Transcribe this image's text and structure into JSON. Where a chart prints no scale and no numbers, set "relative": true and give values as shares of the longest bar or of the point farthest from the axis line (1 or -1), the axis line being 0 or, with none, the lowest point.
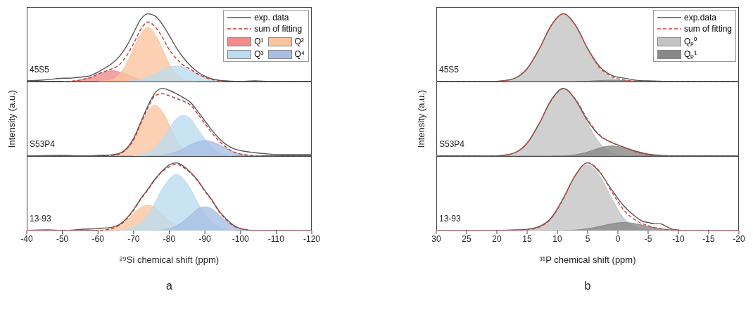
{
  "chart_data": [
    {
      "type": "area",
      "relative": true,
      "xlim": [
        -40,
        -120
      ],
      "tick_labels": false,
      "legend": "top right",
      "annotations": [
        "45S5"
      ],
      "series": [
        {
          "name": "exp. data",
          "type": "line",
          "line_style": "solid",
          "color": "#555555",
          "x": [
            -40,
            -44,
            -48,
            -50,
            -52,
            -54,
            -56,
            -58,
            -60,
            -62,
            -64,
            -66,
            -68,
            -70,
            -72,
            -74,
            -76,
            -78,
            -80,
            -82,
            -84,
            -86,
            -88,
            -90,
            -92,
            -94,
            -96,
            -100,
            -104,
            -108,
            -112,
            -116,
            -120
          ],
          "values": [
            0.01,
            0.02,
            0.04,
            0.05,
            0.05,
            0.06,
            0.07,
            0.09,
            0.14,
            0.2,
            0.27,
            0.37,
            0.52,
            0.72,
            0.92,
            1,
            0.97,
            0.85,
            0.68,
            0.5,
            0.35,
            0.23,
            0.14,
            0.08,
            0.04,
            0.02,
            0.01,
            0,
            0.01,
            0,
            0,
            0,
            0
          ]
        },
        {
          "name": "sum of fitting",
          "type": "line",
          "line_style": "dashed",
          "color": "#c0392b",
          "x": [
            -40,
            -50,
            -52,
            -54,
            -56,
            -58,
            -60,
            -62,
            -64,
            -66,
            -68,
            -70,
            -72,
            -74,
            -76,
            -78,
            -80,
            -82,
            -84,
            -86,
            -88,
            -90,
            -92,
            -94,
            -96,
            -98,
            -100,
            -120
          ],
          "values": [
            0,
            0,
            0.004,
            0.013,
            0.035,
            0.06,
            0.11,
            0.15,
            0.19,
            0.25,
            0.38,
            0.56,
            0.77,
            0.88,
            0.81,
            0.66,
            0.47,
            0.34,
            0.24,
            0.18,
            0.11,
            0.064,
            0.03,
            0.014,
            0.005,
            0,
            0,
            0
          ]
        },
        {
          "name": "Q¹",
          "type": "area",
          "color": "#f08c8c",
          "x": [
            -50,
            -52,
            -54,
            -56,
            -58,
            -60,
            -62,
            -64,
            -66,
            -68,
            -70,
            -72,
            -74,
            -76,
            -78
          ],
          "values": [
            0,
            0.004,
            0.013,
            0.035,
            0.06,
            0.11,
            0.14,
            0.16,
            0.14,
            0.11,
            0.06,
            0.035,
            0.013,
            0.004,
            0
          ]
        },
        {
          "name": "Q²",
          "type": "area",
          "color": "#fbc4a0",
          "x": [
            -60,
            -62,
            -64,
            -66,
            -68,
            -70,
            -72,
            -74,
            -76,
            -78,
            -80,
            -82,
            -84,
            -86,
            -88
          ],
          "values": [
            0,
            0.01,
            0.03,
            0.11,
            0.26,
            0.49,
            0.7,
            0.8,
            0.7,
            0.49,
            0.26,
            0.11,
            0.03,
            0.01,
            0
          ]
        },
        {
          "name": "Q³",
          "type": "area",
          "color": "#bcdcef",
          "x": [
            -66,
            -68,
            -70,
            -72,
            -74,
            -76,
            -78,
            -80,
            -82,
            -84,
            -86,
            -88,
            -90,
            -92,
            -94,
            -96,
            -98
          ],
          "values": [
            0,
            0.005,
            0.014,
            0.03,
            0.064,
            0.11,
            0.17,
            0.21,
            0.23,
            0.21,
            0.17,
            0.11,
            0.064,
            0.03,
            0.014,
            0.005,
            0
          ]
        }
      ]
    },
    {
      "type": "area",
      "relative": true,
      "xlim": [
        -40,
        -120
      ],
      "tick_labels": false,
      "ylabel": "Intensity (a.u.)",
      "annotations": [
        "S53P4"
      ],
      "series": [
        {
          "type": "line",
          "line_style": "solid",
          "color": "#555555",
          "x": [
            -40,
            -50,
            -56,
            -60,
            -64,
            -66,
            -68,
            -70,
            -72,
            -74,
            -76,
            -78,
            -80,
            -82,
            -84,
            -86,
            -88,
            -90,
            -92,
            -94,
            -96,
            -98,
            -100,
            -104,
            -108,
            -112,
            -116,
            -120
          ],
          "values": [
            0,
            0.01,
            0,
            0.01,
            0.02,
            0.04,
            0.11,
            0.26,
            0.5,
            0.74,
            0.93,
            1,
            0.97,
            0.92,
            0.86,
            0.79,
            0.66,
            0.52,
            0.38,
            0.26,
            0.17,
            0.11,
            0.08,
            0.05,
            0.03,
            0.02,
            0.02,
            0.02
          ]
        },
        {
          "type": "line",
          "line_style": "dashed",
          "color": "#c0392b",
          "x": [
            -40,
            -60,
            -62,
            -64,
            -66,
            -68,
            -70,
            -72,
            -74,
            -76,
            -78,
            -80,
            -82,
            -84,
            -86,
            -88,
            -90,
            -92,
            -94,
            -96,
            -98,
            -100,
            -102,
            -104,
            -106,
            -120
          ],
          "values": [
            0,
            0,
            0,
            0.01,
            0.03,
            0.1,
            0.24,
            0.48,
            0.71,
            0.89,
            0.92,
            0.89,
            0.85,
            0.81,
            0.75,
            0.62,
            0.48,
            0.34,
            0.22,
            0.13,
            0.064,
            0.03,
            0.014,
            0.005,
            0,
            0
          ]
        },
        {
          "type": "area",
          "color": "#fbc4a0",
          "x": [
            -62,
            -64,
            -66,
            -68,
            -70,
            -72,
            -74,
            -76,
            -78,
            -80,
            -82,
            -84,
            -86,
            -88,
            -90
          ],
          "values": [
            0,
            0.01,
            0.03,
            0.1,
            0.24,
            0.46,
            0.66,
            0.75,
            0.66,
            0.46,
            0.24,
            0.1,
            0.03,
            0.01,
            0
          ]
        },
        {
          "type": "area",
          "color": "#bcdcef",
          "x": [
            -70,
            -72,
            -74,
            -76,
            -78,
            -80,
            -82,
            -84,
            -86,
            -88,
            -90,
            -92,
            -94,
            -96,
            -98
          ],
          "values": [
            0,
            0.02,
            0.05,
            0.13,
            0.25,
            0.4,
            0.55,
            0.6,
            0.55,
            0.4,
            0.25,
            0.13,
            0.05,
            0.02,
            0
          ]
        },
        {
          "name": "Q⁴",
          "type": "area",
          "color": "#a8bfe3",
          "x": [
            -74,
            -76,
            -78,
            -80,
            -82,
            -84,
            -86,
            -88,
            -90,
            -92,
            -94,
            -96,
            -98,
            -100,
            -102,
            -104,
            -106
          ],
          "values": [
            0,
            0.005,
            0.014,
            0.03,
            0.064,
            0.11,
            0.17,
            0.21,
            0.23,
            0.21,
            0.17,
            0.11,
            0.064,
            0.03,
            0.014,
            0.005,
            0
          ]
        }
      ]
    },
    {
      "type": "area",
      "relative": true,
      "xlim": [
        -40,
        -120
      ],
      "xticks": [
        -40,
        -50,
        -60,
        -70,
        -80,
        -90,
        -100,
        -110,
        -120
      ],
      "xlabel": "²⁹Si chemical shift (ppm)",
      "annotations": [
        "13-93",
        "a"
      ],
      "series": [
        {
          "type": "line",
          "line_style": "solid",
          "color": "#555555",
          "x": [
            -40,
            -46,
            -50,
            -56,
            -60,
            -64,
            -66,
            -68,
            -70,
            -72,
            -74,
            -76,
            -78,
            -80,
            -82,
            -84,
            -86,
            -88,
            -90,
            -92,
            -94,
            -96,
            -98,
            -100,
            -104,
            -108,
            -112,
            -116,
            -120
          ],
          "values": [
            0,
            0.01,
            0,
            0.02,
            0.03,
            0.05,
            0.09,
            0.18,
            0.31,
            0.47,
            0.61,
            0.76,
            0.88,
            0.97,
            1,
            0.95,
            0.86,
            0.74,
            0.59,
            0.45,
            0.29,
            0.17,
            0.08,
            0.03,
            0,
            0,
            0,
            0,
            0
          ]
        },
        {
          "type": "line",
          "line_style": "dashed",
          "color": "#c0392b",
          "x": [
            -40,
            -60,
            -62,
            -64,
            -66,
            -68,
            -70,
            -72,
            -74,
            -76,
            -78,
            -80,
            -82,
            -84,
            -86,
            -88,
            -90,
            -92,
            -94,
            -96,
            -98,
            -100,
            -102,
            -104,
            -120
          ],
          "values": [
            0,
            0,
            0.01,
            0.03,
            0.08,
            0.17,
            0.3,
            0.46,
            0.6,
            0.75,
            0.87,
            0.94,
            0.98,
            0.93,
            0.85,
            0.73,
            0.58,
            0.44,
            0.28,
            0.16,
            0.07,
            0.03,
            0.01,
            0,
            0
          ]
        },
        {
          "type": "area",
          "color": "#fbc4a0",
          "x": [
            -60,
            -62,
            -64,
            -66,
            -68,
            -70,
            -72,
            -74,
            -76,
            -78,
            -80,
            -82,
            -84,
            -86,
            -88
          ],
          "values": [
            0,
            0.01,
            0.03,
            0.08,
            0.15,
            0.25,
            0.34,
            0.37,
            0.34,
            0.25,
            0.15,
            0.08,
            0.03,
            0.01,
            0
          ]
        },
        {
          "type": "area",
          "color": "#bcdcef",
          "x": [
            -66,
            -68,
            -70,
            -72,
            -74,
            -76,
            -78,
            -80,
            -82,
            -84,
            -86,
            -88,
            -90,
            -92,
            -94,
            -96,
            -98
          ],
          "values": [
            0,
            0.02,
            0.05,
            0.12,
            0.23,
            0.41,
            0.61,
            0.76,
            0.83,
            0.76,
            0.61,
            0.41,
            0.23,
            0.12,
            0.05,
            0.02,
            0
          ]
        },
        {
          "type": "area",
          "color": "#a8bfe3",
          "x": [
            -76,
            -78,
            -80,
            -82,
            -84,
            -86,
            -88,
            -90,
            -92,
            -94,
            -96,
            -98,
            -100,
            -102,
            -104
          ],
          "values": [
            0,
            0.01,
            0.03,
            0.07,
            0.14,
            0.23,
            0.32,
            0.35,
            0.32,
            0.23,
            0.14,
            0.07,
            0.03,
            0.01,
            0
          ]
        }
      ]
    },
    {
      "type": "area",
      "relative": true,
      "xlim": [
        30,
        -20
      ],
      "tick_labels": false,
      "legend": "top right",
      "annotations": [
        "45S5"
      ],
      "series": [
        {
          "name": "exp.data",
          "type": "line",
          "line_style": "solid",
          "color": "#555555",
          "x": [
            30,
            21,
            19,
            17,
            15,
            13,
            11,
            9,
            7,
            5,
            3,
            1,
            -1,
            -3,
            -5,
            -10,
            -15,
            -20
          ],
          "values": [
            0,
            0,
            0.01,
            0.05,
            0.19,
            0.48,
            0.83,
            1,
            0.83,
            0.49,
            0.22,
            0.09,
            0.05,
            0.02,
            0.01,
            0,
            0,
            0
          ]
        },
        {
          "name": "sum of fitting",
          "type": "line",
          "line_style": "dashed",
          "color": "#d9443a",
          "x": [
            30,
            23,
            21,
            19,
            17,
            15,
            13,
            11,
            9,
            7,
            5,
            3,
            1,
            -1,
            -3,
            -5,
            -7,
            -20
          ],
          "values": [
            0,
            0,
            0,
            0.01,
            0.05,
            0.19,
            0.48,
            0.83,
            1,
            0.83,
            0.485,
            0.205,
            0.07,
            0.025,
            0.005,
            0,
            0,
            0
          ]
        },
        {
          "name": "Qₚ⁰",
          "type": "area",
          "color": "#c4c4c4",
          "x": [
            23,
            21,
            19,
            17,
            15,
            13,
            11,
            9,
            7,
            5,
            3,
            1,
            -1,
            -3,
            -5
          ],
          "values": [
            0,
            0,
            0.01,
            0.05,
            0.19,
            0.48,
            0.83,
            1,
            0.83,
            0.48,
            0.19,
            0.05,
            0.01,
            0,
            0
          ]
        },
        {
          "name": "Qₚ¹",
          "type": "area",
          "color": "#888888",
          "x": [
            7,
            5,
            3,
            1,
            -1,
            -3,
            -5
          ],
          "values": [
            0,
            0.005,
            0.015,
            0.02,
            0.015,
            0.005,
            0
          ]
        }
      ]
    },
    {
      "type": "area",
      "relative": true,
      "xlim": [
        30,
        -20
      ],
      "tick_labels": false,
      "ylabel": "Intensity (a.u.)",
      "annotations": [
        "S53P4"
      ],
      "series": [
        {
          "type": "line",
          "line_style": "solid",
          "color": "#555555",
          "x": [
            30,
            21,
            19,
            17,
            15,
            13,
            11,
            9,
            7,
            5,
            3,
            1,
            -1,
            -3,
            -5,
            -7,
            -10,
            -15,
            -20
          ],
          "values": [
            0,
            0,
            0.01,
            0.05,
            0.19,
            0.48,
            0.83,
            1,
            0.83,
            0.52,
            0.3,
            0.2,
            0.13,
            0.07,
            0.03,
            0.01,
            0,
            0,
            0
          ]
        },
        {
          "type": "line",
          "line_style": "dashed",
          "color": "#d9443a",
          "x": [
            30,
            23,
            21,
            19,
            17,
            15,
            13,
            11,
            9,
            7,
            5,
            3,
            1,
            -1,
            -3,
            -5,
            -7,
            -9,
            -20
          ],
          "values": [
            0,
            0,
            0,
            0.01,
            0.05,
            0.19,
            0.48,
            0.82,
            0.994,
            0.84,
            0.54,
            0.31,
            0.2,
            0.13,
            0.06,
            0.02,
            0.004,
            0,
            0
          ]
        },
        {
          "type": "area",
          "color": "#c4c4c4",
          "x": [
            23,
            21,
            19,
            17,
            15,
            13,
            11,
            9,
            7,
            5,
            3,
            1,
            -1,
            -3,
            -5
          ],
          "values": [
            0,
            0,
            0.01,
            0.05,
            0.19,
            0.48,
            0.82,
            0.99,
            0.82,
            0.48,
            0.19,
            0.05,
            0.01,
            0,
            0
          ]
        },
        {
          "type": "area",
          "color": "#888888",
          "x": [
            11,
            9,
            7,
            5,
            3,
            1,
            -1,
            -3,
            -5,
            -7,
            -9
          ],
          "values": [
            0,
            0.004,
            0.02,
            0.06,
            0.12,
            0.15,
            0.12,
            0.06,
            0.02,
            0.004,
            0
          ]
        }
      ]
    },
    {
      "type": "area",
      "relative": true,
      "xlim": [
        30,
        -20
      ],
      "xticks": [
        30,
        25,
        20,
        15,
        10,
        5,
        0,
        -5,
        -10,
        -15,
        -20
      ],
      "xlabel": "³¹P chemical shift (ppm)",
      "annotations": [
        "13-93",
        "b"
      ],
      "series": [
        {
          "type": "line",
          "line_style": "solid",
          "color": "#555555",
          "x": [
            30,
            20,
            17,
            15,
            13,
            11,
            9,
            7,
            5,
            3,
            1,
            -1,
            -3,
            -4,
            -5,
            -6,
            -7,
            -8,
            -9,
            -12,
            -20
          ],
          "values": [
            0,
            0,
            0.01,
            0.02,
            0.06,
            0.19,
            0.48,
            0.82,
            1,
            0.86,
            0.6,
            0.36,
            0.2,
            0.14,
            0.12,
            0.1,
            0.1,
            0.06,
            0.02,
            0,
            0
          ]
        },
        {
          "type": "line",
          "line_style": "dashed",
          "color": "#d9443a",
          "x": [
            30,
            19,
            17,
            15,
            13,
            11,
            9,
            7,
            5,
            3,
            1,
            -1,
            -3,
            -5,
            -7,
            -9,
            -11,
            -20
          ],
          "values": [
            0,
            0,
            0,
            0.01,
            0.05,
            0.18,
            0.47,
            0.82,
            1,
            0.87,
            0.57,
            0.3,
            0.15,
            0.07,
            0.028,
            0.008,
            0,
            0
          ]
        },
        {
          "type": "area",
          "color": "#c4c4c4",
          "x": [
            19,
            17,
            15,
            13,
            11,
            9,
            7,
            5,
            3,
            1,
            -1,
            -3,
            -5,
            -7,
            -9
          ],
          "values": [
            0,
            0,
            0.01,
            0.05,
            0.18,
            0.47,
            0.81,
            0.97,
            0.81,
            0.47,
            0.18,
            0.05,
            0.01,
            0,
            0
          ]
        },
        {
          "type": "area",
          "color": "#888888",
          "x": [
            9,
            7,
            5,
            3,
            1,
            -1,
            -3,
            -5,
            -7,
            -9,
            -11
          ],
          "values": [
            0,
            0.008,
            0.028,
            0.062,
            0.1,
            0.12,
            0.1,
            0.062,
            0.028,
            0.008,
            0
          ]
        }
      ]
    }
  ]
}
